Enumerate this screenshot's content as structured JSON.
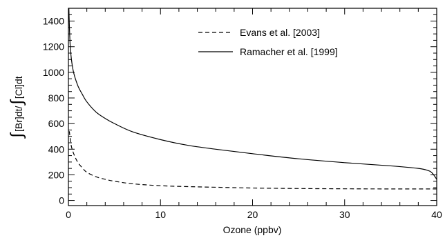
{
  "chart_data": {
    "type": "line",
    "xlabel": "Ozone (ppbv)",
    "ylabel": {
      "int1": "∫",
      "part1": "[Br]dt/",
      "int2": "∫",
      "part2": "[Cl]dt"
    },
    "xlim": [
      0,
      40
    ],
    "ylim": [
      -40,
      1500
    ],
    "xticks": [
      0,
      10,
      20,
      30,
      40
    ],
    "yticks": [
      0,
      200,
      400,
      600,
      800,
      1000,
      1200,
      1400
    ],
    "grid": false,
    "legend_position": "top-right",
    "series": [
      {
        "name": "Evans et al. [2003]",
        "style": "dashed",
        "color": "#000000",
        "x": [
          0.1,
          0.3,
          0.6,
          1,
          1.5,
          2,
          3,
          4,
          5,
          7,
          10,
          13,
          16,
          20,
          25,
          30,
          35,
          40
        ],
        "y": [
          540,
          430,
          360,
          300,
          255,
          220,
          185,
          165,
          150,
          130,
          115,
          108,
          103,
          97,
          93,
          91,
          90,
          90
        ]
      },
      {
        "name": "Ramacher et al. [1999]",
        "style": "solid",
        "color": "#000000",
        "x": [
          0.05,
          0.2,
          0.5,
          1,
          1.5,
          2,
          3,
          4,
          5,
          7,
          10,
          13,
          16,
          20,
          25,
          30,
          35,
          38,
          39,
          39.5,
          40
        ],
        "y": [
          1500,
          1200,
          1020,
          900,
          830,
          770,
          690,
          640,
          600,
          535,
          475,
          430,
          400,
          365,
          325,
          295,
          270,
          250,
          235,
          215,
          165
        ]
      }
    ]
  }
}
